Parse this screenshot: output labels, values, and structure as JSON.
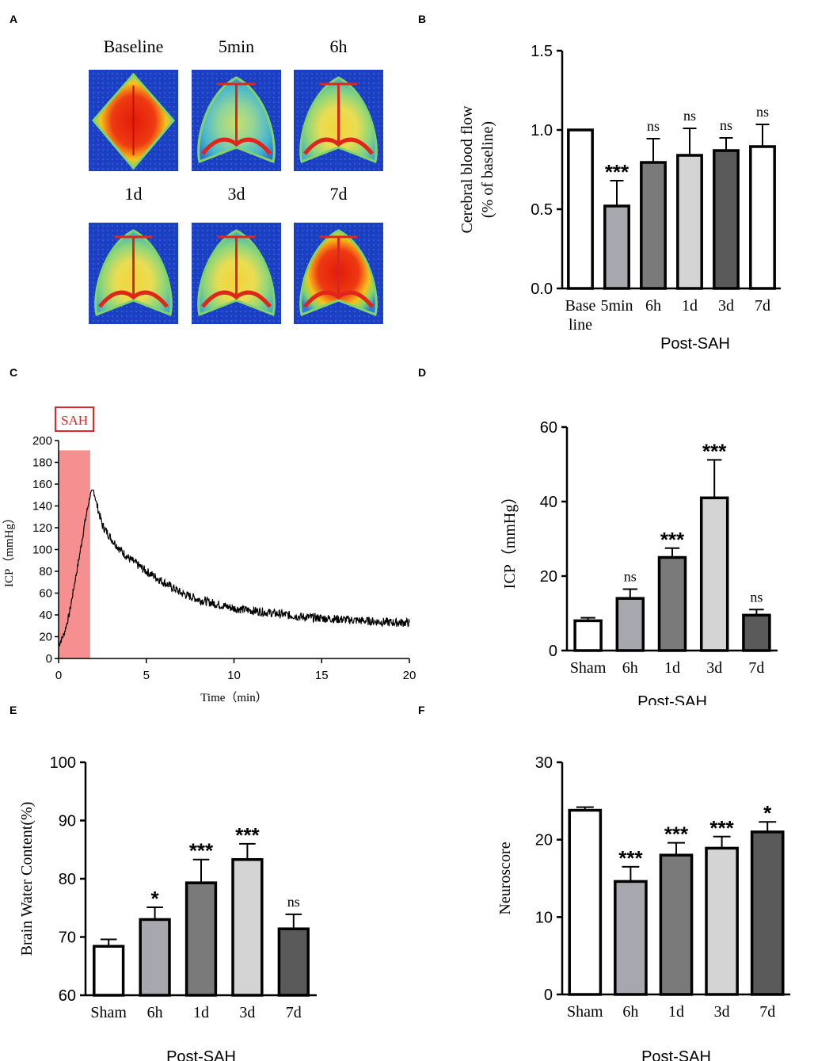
{
  "panels": {
    "a": {
      "letter": "A",
      "images": [
        {
          "label": "Baseline",
          "kind": "baseline"
        },
        {
          "label": "5min",
          "kind": "5min"
        },
        {
          "label": "6h",
          "kind": "6h"
        },
        {
          "label": "1d",
          "kind": "1d"
        },
        {
          "label": "3d",
          "kind": "3d"
        },
        {
          "label": "7d",
          "kind": "7d"
        }
      ]
    },
    "b": {
      "letter": "B"
    },
    "c": {
      "letter": "C",
      "marker": "SAH"
    },
    "d": {
      "letter": "D"
    },
    "e": {
      "letter": "E"
    },
    "f": {
      "letter": "F"
    }
  },
  "chart_data": [
    {
      "id": "B",
      "type": "bar",
      "ylabel_line1": "Cerebral blood flow",
      "ylabel_line2": "(% of baseline)",
      "xlabel": "Post-SAH",
      "categories": [
        "Base line",
        "5min",
        "6h",
        "1d",
        "3d",
        "7d"
      ],
      "category_lines": [
        [
          "Base",
          "line"
        ],
        [
          "5min"
        ],
        [
          "6h"
        ],
        [
          "1d"
        ],
        [
          "3d"
        ],
        [
          "7d"
        ]
      ],
      "values": [
        1.0,
        0.52,
        0.795,
        0.84,
        0.87,
        0.895
      ],
      "errors": [
        0,
        0.16,
        0.15,
        0.17,
        0.08,
        0.14
      ],
      "significance": [
        "",
        "***",
        "ns",
        "ns",
        "ns",
        "ns"
      ],
      "fills": [
        "#ffffff",
        "#a7a7ae",
        "#7a7a7a",
        "#d4d4d4",
        "#5a5a5a",
        "#ffffff"
      ],
      "ylim": [
        0,
        1.5
      ],
      "yticks": [
        "0.0",
        "0.5",
        "1.0",
        "1.5"
      ],
      "ytick_values": [
        0,
        0.5,
        1.0,
        1.5
      ]
    },
    {
      "id": "C",
      "type": "line",
      "ylabel": "ICP（mmHg）",
      "xlabel": "Time（min）",
      "xlim": [
        0,
        20
      ],
      "ylim": [
        0,
        200
      ],
      "xticks": [
        "0",
        "5",
        "10",
        "15",
        "20"
      ],
      "xtick_values": [
        0,
        5,
        10,
        15,
        20
      ],
      "yticks": [
        "0",
        "20",
        "40",
        "60",
        "80",
        "100",
        "120",
        "140",
        "160",
        "180",
        "200"
      ],
      "ytick_values": [
        0,
        20,
        40,
        60,
        80,
        100,
        120,
        140,
        160,
        180,
        200
      ],
      "shaded_x": [
        0,
        1.8
      ],
      "shaded_ytop": 191,
      "x": [
        0,
        0.3,
        0.6,
        0.9,
        1.2,
        1.5,
        1.8,
        2.0,
        2.2,
        2.5,
        3,
        3.5,
        4,
        5,
        6,
        7,
        8,
        9,
        10,
        11,
        12,
        13,
        14,
        15,
        16,
        17,
        18,
        19,
        20
      ],
      "y": [
        12,
        22,
        40,
        68,
        95,
        125,
        150,
        154,
        140,
        122,
        110,
        100,
        92,
        80,
        70,
        60,
        54,
        50,
        46,
        44,
        42,
        40,
        38,
        37,
        36,
        35,
        34,
        33,
        33
      ]
    },
    {
      "id": "D",
      "type": "bar",
      "ylabel": "ICP（mmHg）",
      "xlabel": "Post-SAH",
      "categories": [
        "Sham",
        "6h",
        "1d",
        "3d",
        "7d"
      ],
      "values": [
        8,
        14,
        25,
        41,
        9.5
      ],
      "errors": [
        0.8,
        2.5,
        2.5,
        10.2,
        1.5
      ],
      "significance": [
        "",
        "ns",
        "***",
        "***",
        "ns"
      ],
      "fills": [
        "#ffffff",
        "#a7a7ae",
        "#7a7a7a",
        "#d4d4d4",
        "#5a5a5a"
      ],
      "ylim": [
        0,
        60
      ],
      "yticks": [
        "0",
        "20",
        "40",
        "60"
      ],
      "ytick_values": [
        0,
        20,
        40,
        60
      ]
    },
    {
      "id": "E",
      "type": "bar",
      "ylabel": "Brain Water Content(%)",
      "xlabel": "Post-SAH",
      "categories": [
        "Sham",
        "6h",
        "1d",
        "3d",
        "7d"
      ],
      "values": [
        68.4,
        73.0,
        79.3,
        83.3,
        71.4
      ],
      "errors": [
        1.2,
        2.1,
        4.0,
        2.7,
        2.5
      ],
      "significance": [
        "",
        "*",
        "***",
        "***",
        "ns"
      ],
      "fills": [
        "#ffffff",
        "#a7a7ae",
        "#7a7a7a",
        "#d4d4d4",
        "#5a5a5a"
      ],
      "ylim": [
        60,
        100
      ],
      "yticks": [
        "60",
        "70",
        "80",
        "90",
        "100"
      ],
      "ytick_values": [
        60,
        70,
        80,
        90,
        100
      ]
    },
    {
      "id": "F",
      "type": "bar",
      "ylabel": "Neuroscore",
      "xlabel": "Post-SAH",
      "categories": [
        "Sham",
        "6h",
        "1d",
        "3d",
        "7d"
      ],
      "values": [
        23.8,
        14.6,
        18.0,
        18.9,
        21.0
      ],
      "errors": [
        0.4,
        1.9,
        1.6,
        1.5,
        1.3
      ],
      "significance": [
        "",
        "***",
        "***",
        "***",
        "*"
      ],
      "fills": [
        "#ffffff",
        "#a7a7ae",
        "#7a7a7a",
        "#d4d4d4",
        "#5a5a5a"
      ],
      "ylim": [
        0,
        30
      ],
      "yticks": [
        "0",
        "10",
        "20",
        "30"
      ],
      "ytick_values": [
        0,
        10,
        20,
        30
      ]
    }
  ]
}
